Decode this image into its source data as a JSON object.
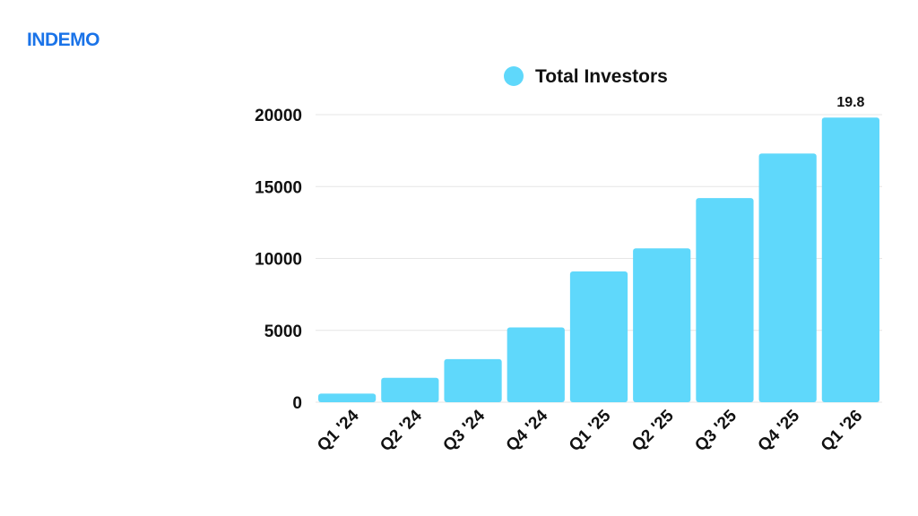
{
  "brand": {
    "name": "INDEMO",
    "color": "#1a73e8"
  },
  "chart_data": {
    "type": "bar",
    "categories": [
      "Q1 '24",
      "Q2 '24",
      "Q3 '24",
      "Q4 '24",
      "Q1 '25",
      "Q2 '25",
      "Q3 '25",
      "Q4 '25",
      "Q1 '26"
    ],
    "series": [
      {
        "name": "Total Investors",
        "values": [
          600,
          1700,
          3000,
          5200,
          9100,
          10700,
          14200,
          17300,
          19800
        ],
        "color": "#5fd8fb"
      }
    ],
    "data_labels": [
      {
        "category": "Q1 '26",
        "text": "19.8"
      }
    ],
    "ylim": [
      0,
      20000
    ],
    "yticks": [
      "0",
      "5000",
      "10000",
      "15000",
      "20000"
    ],
    "grid": true,
    "legend": "top-center",
    "xlabel": "",
    "ylabel": "",
    "title": ""
  }
}
